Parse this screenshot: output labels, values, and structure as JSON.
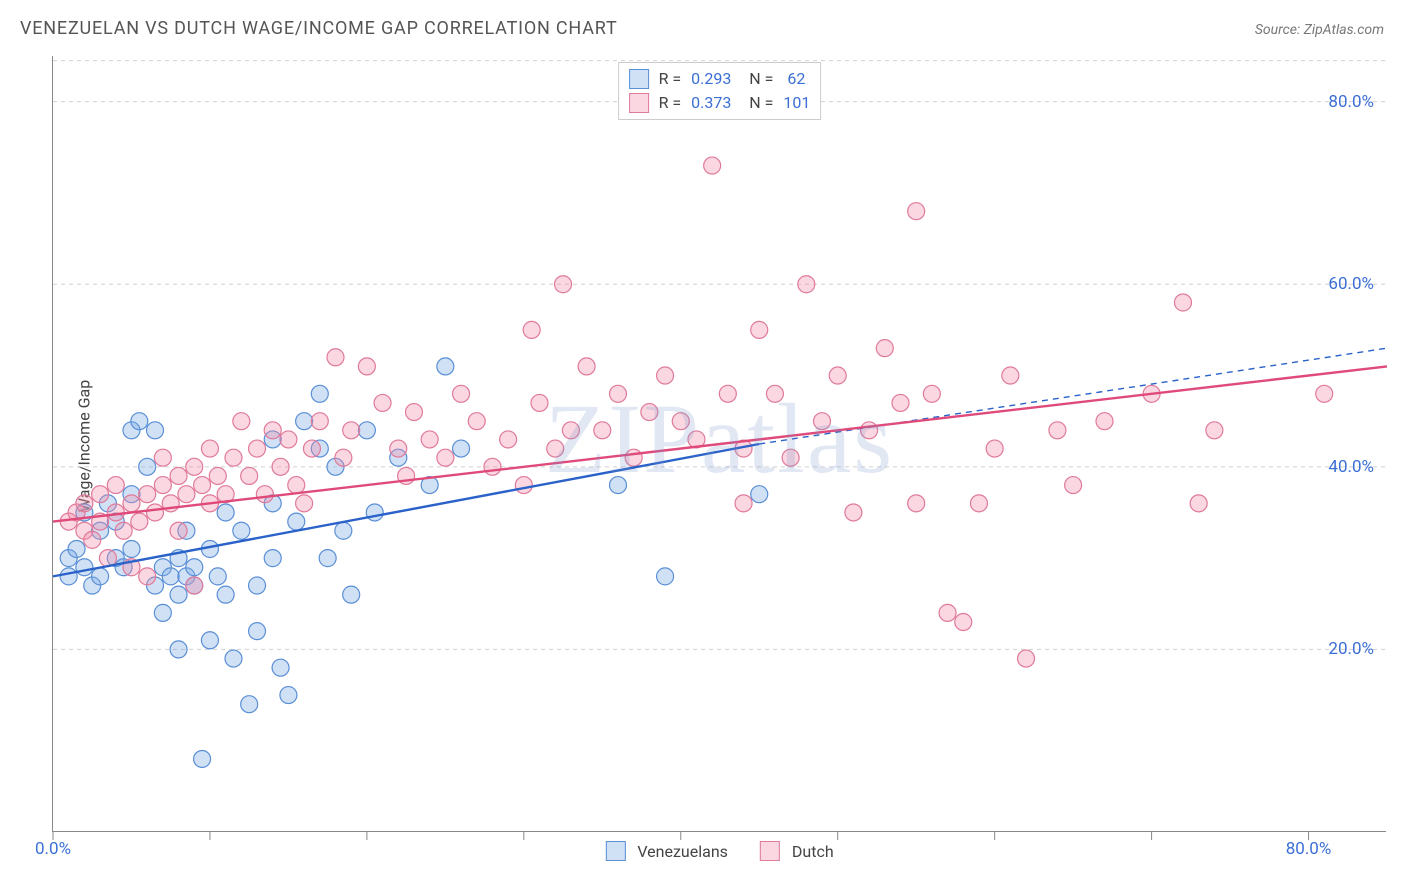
{
  "title": "VENEZUELAN VS DUTCH WAGE/INCOME GAP CORRELATION CHART",
  "source": "Source: ZipAtlas.com",
  "ylabel": "Wage/Income Gap",
  "watermark": "ZIPatlas",
  "chart": {
    "type": "scatter",
    "xlim": [
      0,
      85
    ],
    "ylim": [
      0,
      85
    ],
    "xtick_labels": [
      {
        "value": 0,
        "label": "0.0%"
      },
      {
        "value": 80,
        "label": "80.0%"
      }
    ],
    "xtick_marks": [
      0,
      10,
      20,
      30,
      40,
      50,
      60,
      70,
      80
    ],
    "ytick_labels": [
      {
        "value": 20,
        "label": "20.0%"
      },
      {
        "value": 40,
        "label": "40.0%"
      },
      {
        "value": 60,
        "label": "60.0%"
      },
      {
        "value": 80,
        "label": "80.0%"
      }
    ],
    "grid_color": "#d0d0d0",
    "grid_dash": "4,4",
    "background_color": "#ffffff",
    "marker_radius": 8.5,
    "marker_stroke_width": 1.2,
    "series": [
      {
        "name": "Venezuelans",
        "fill": "rgba(120,170,230,0.35)",
        "stroke": "#5a8fd6",
        "trend": {
          "x1": 0,
          "y1": 28,
          "x2": 45,
          "y2": 42.5,
          "dash_x1": 45,
          "dash_y1": 42.5,
          "dash_x2": 85,
          "dash_y2": 53,
          "color": "#2a62c9",
          "width": 2.4
        },
        "stats": {
          "R": "0.293",
          "N": "62"
        },
        "points": [
          [
            1,
            28
          ],
          [
            1,
            30
          ],
          [
            2,
            29
          ],
          [
            1.5,
            31
          ],
          [
            2,
            35
          ],
          [
            2.5,
            27
          ],
          [
            3,
            28
          ],
          [
            3,
            33
          ],
          [
            3.5,
            36
          ],
          [
            4,
            30
          ],
          [
            4,
            34
          ],
          [
            4.5,
            29
          ],
          [
            5,
            37
          ],
          [
            5,
            31
          ],
          [
            5,
            44
          ],
          [
            5.5,
            45
          ],
          [
            6,
            40
          ],
          [
            6.5,
            44
          ],
          [
            6.5,
            27
          ],
          [
            7,
            29
          ],
          [
            7,
            24
          ],
          [
            7.5,
            28
          ],
          [
            8,
            26
          ],
          [
            8,
            30
          ],
          [
            8,
            20
          ],
          [
            8.5,
            33
          ],
          [
            8.5,
            28
          ],
          [
            9,
            27
          ],
          [
            9,
            29
          ],
          [
            9.5,
            8
          ],
          [
            10,
            21
          ],
          [
            10,
            31
          ],
          [
            10.5,
            28
          ],
          [
            11,
            35
          ],
          [
            11,
            26
          ],
          [
            11.5,
            19
          ],
          [
            12,
            33
          ],
          [
            12.5,
            14
          ],
          [
            13,
            27
          ],
          [
            13,
            22
          ],
          [
            14,
            36
          ],
          [
            14,
            30
          ],
          [
            14,
            43
          ],
          [
            14.5,
            18
          ],
          [
            15,
            15
          ],
          [
            15.5,
            34
          ],
          [
            16,
            45
          ],
          [
            17,
            42
          ],
          [
            17,
            48
          ],
          [
            17.5,
            30
          ],
          [
            18,
            40
          ],
          [
            18.5,
            33
          ],
          [
            19,
            26
          ],
          [
            20,
            44
          ],
          [
            20.5,
            35
          ],
          [
            22,
            41
          ],
          [
            24,
            38
          ],
          [
            25,
            51
          ],
          [
            26,
            42
          ],
          [
            36,
            38
          ],
          [
            39,
            28
          ],
          [
            45,
            37
          ]
        ]
      },
      {
        "name": "Dutch",
        "fill": "rgba(240,140,170,0.35)",
        "stroke": "#e07a9a",
        "trend": {
          "x1": 0,
          "y1": 34,
          "x2": 85,
          "y2": 51,
          "color": "#e04a7a",
          "width": 2.4
        },
        "stats": {
          "R": "0.373",
          "N": "101"
        },
        "points": [
          [
            1,
            34
          ],
          [
            1.5,
            35
          ],
          [
            2,
            33
          ],
          [
            2,
            36
          ],
          [
            2.5,
            32
          ],
          [
            3,
            34
          ],
          [
            3,
            37
          ],
          [
            3.5,
            30
          ],
          [
            4,
            35
          ],
          [
            4,
            38
          ],
          [
            4.5,
            33
          ],
          [
            5,
            36
          ],
          [
            5,
            29
          ],
          [
            5.5,
            34
          ],
          [
            6,
            37
          ],
          [
            6,
            28
          ],
          [
            6.5,
            35
          ],
          [
            7,
            38
          ],
          [
            7,
            41
          ],
          [
            7.5,
            36
          ],
          [
            8,
            39
          ],
          [
            8,
            33
          ],
          [
            8.5,
            37
          ],
          [
            9,
            40
          ],
          [
            9,
            27
          ],
          [
            9.5,
            38
          ],
          [
            10,
            36
          ],
          [
            10,
            42
          ],
          [
            10.5,
            39
          ],
          [
            11,
            37
          ],
          [
            11.5,
            41
          ],
          [
            12,
            45
          ],
          [
            12.5,
            39
          ],
          [
            13,
            42
          ],
          [
            13.5,
            37
          ],
          [
            14,
            44
          ],
          [
            14.5,
            40
          ],
          [
            15,
            43
          ],
          [
            15.5,
            38
          ],
          [
            16,
            36
          ],
          [
            16.5,
            42
          ],
          [
            17,
            45
          ],
          [
            18,
            52
          ],
          [
            18.5,
            41
          ],
          [
            19,
            44
          ],
          [
            20,
            51
          ],
          [
            21,
            47
          ],
          [
            22,
            42
          ],
          [
            22.5,
            39
          ],
          [
            23,
            46
          ],
          [
            24,
            43
          ],
          [
            25,
            41
          ],
          [
            26,
            48
          ],
          [
            27,
            45
          ],
          [
            28,
            40
          ],
          [
            29,
            43
          ],
          [
            30,
            38
          ],
          [
            30.5,
            55
          ],
          [
            31,
            47
          ],
          [
            32,
            42
          ],
          [
            32.5,
            60
          ],
          [
            33,
            44
          ],
          [
            34,
            51
          ],
          [
            35,
            44
          ],
          [
            36,
            48
          ],
          [
            37,
            41
          ],
          [
            38,
            46
          ],
          [
            39,
            50
          ],
          [
            40,
            45
          ],
          [
            41,
            43
          ],
          [
            42,
            73
          ],
          [
            43,
            48
          ],
          [
            44,
            42
          ],
          [
            44,
            36
          ],
          [
            45,
            55
          ],
          [
            46,
            48
          ],
          [
            47,
            41
          ],
          [
            48,
            60
          ],
          [
            49,
            45
          ],
          [
            50,
            50
          ],
          [
            51,
            35
          ],
          [
            52,
            44
          ],
          [
            53,
            53
          ],
          [
            54,
            47
          ],
          [
            55,
            68
          ],
          [
            55,
            36
          ],
          [
            56,
            48
          ],
          [
            57,
            24
          ],
          [
            58,
            23
          ],
          [
            59,
            36
          ],
          [
            60,
            42
          ],
          [
            61,
            50
          ],
          [
            62,
            19
          ],
          [
            64,
            44
          ],
          [
            65,
            38
          ],
          [
            67,
            45
          ],
          [
            70,
            48
          ],
          [
            72,
            58
          ],
          [
            73,
            36
          ],
          [
            74,
            44
          ],
          [
            81,
            48
          ]
        ]
      }
    ],
    "legend_swatch": {
      "venezuelans": {
        "fill": "rgba(120,170,230,0.35)",
        "stroke": "#5a8fd6"
      },
      "dutch": {
        "fill": "rgba(240,140,170,0.35)",
        "stroke": "#e07a9a"
      }
    }
  }
}
